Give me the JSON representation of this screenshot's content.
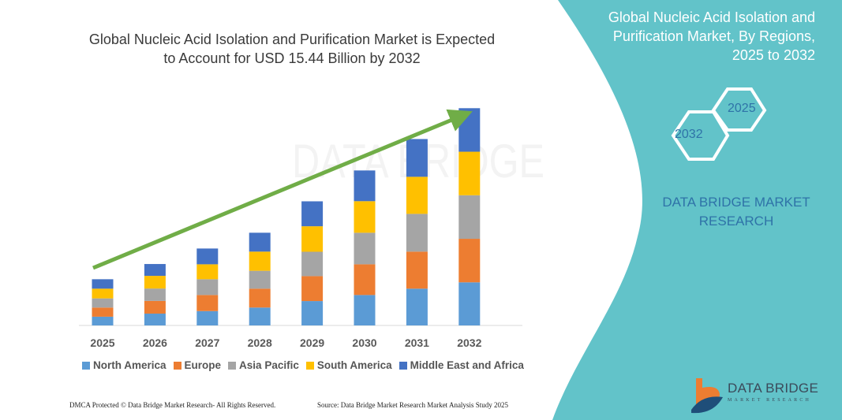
{
  "header": {
    "title_line1": "Global Nucleic Acid Isolation and Purification Market is Expected",
    "title_line2": "to Account for USD 15.44 Billion by 2032"
  },
  "side_panel": {
    "title_line1": "Global Nucleic Acid Isolation and",
    "title_line2": "Purification Market, By Regions,",
    "title_line3": "2025 to 2032",
    "hex_start": "2025",
    "hex_end": "2032",
    "brand_line1": "DATA BRIDGE MARKET",
    "brand_line2": "RESEARCH",
    "background_color": "#62C3C9"
  },
  "logo": {
    "name": "DATA BRIDGE",
    "tagline": "MARKET RESEARCH"
  },
  "watermark": "DATA BRIDGE",
  "footer": {
    "left": "DMCA Protected © Data Bridge Market Research-  All Rights Reserved.",
    "right": "Source: Data Bridge Market Research  Market Analysis Study 2025"
  },
  "chart_data": {
    "type": "bar",
    "stacked": true,
    "title": "Global Nucleic Acid Isolation and Purification Market is Expected to Account for USD 15.44 Billion by 2032",
    "xlabel": "",
    "ylabel": "",
    "y_axis_visible": false,
    "grid": false,
    "legend_position": "bottom",
    "trend_arrow": true,
    "trend_arrow_color": "#70AD47",
    "categories": [
      "2025",
      "2026",
      "2027",
      "2028",
      "2029",
      "2030",
      "2031",
      "2032"
    ],
    "series": [
      {
        "name": "North America",
        "color": "#5B9BD5",
        "values": [
          0.62,
          0.84,
          1.02,
          1.27,
          1.73,
          2.16,
          2.61,
          3.06
        ]
      },
      {
        "name": "Europe",
        "color": "#ED7D31",
        "values": [
          0.65,
          0.9,
          1.14,
          1.34,
          1.77,
          2.18,
          2.63,
          3.09
        ]
      },
      {
        "name": "Asia Pacific",
        "color": "#A5A5A5",
        "values": [
          0.65,
          0.88,
          1.12,
          1.27,
          1.73,
          2.24,
          2.68,
          3.09
        ]
      },
      {
        "name": "South America",
        "color": "#FFC000",
        "values": [
          0.69,
          0.9,
          1.06,
          1.36,
          1.81,
          2.24,
          2.63,
          3.09
        ]
      },
      {
        "name": "Middle East and Africa",
        "color": "#4472C4",
        "values": [
          0.67,
          0.84,
          1.12,
          1.34,
          1.77,
          2.18,
          2.68,
          3.09
        ]
      }
    ]
  }
}
